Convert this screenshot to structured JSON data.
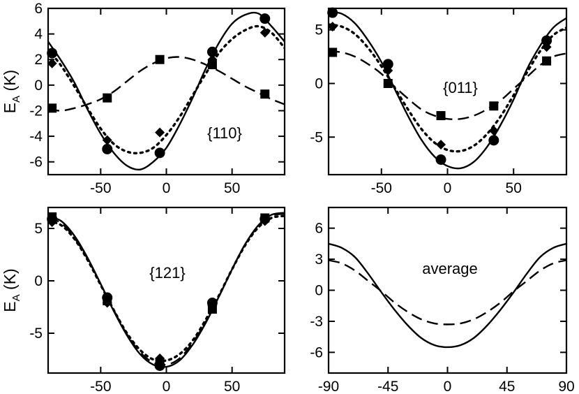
{
  "chart_data": [
    {
      "type": "line",
      "panel_label": "{110}",
      "ylabel_main": "E",
      "ylabel_sub": "A",
      "ylabel_unit": " (K)",
      "xlim": [
        -90,
        90
      ],
      "ylim": [
        -7,
        6
      ],
      "xticks": [
        -50,
        0,
        50
      ],
      "xtick_labels": [
        "-50",
        "0",
        "50"
      ],
      "yticks": [
        -6,
        -4,
        -2,
        0,
        2,
        4,
        6
      ],
      "ytick_labels": [
        "-6",
        "-4",
        "-2",
        "0",
        "2",
        "4",
        "6"
      ],
      "curves": [
        {
          "name": "solid",
          "style": "solid",
          "x": [
            -90,
            -80,
            -70,
            -60,
            -50,
            -40,
            -30,
            -20,
            -10,
            0,
            10,
            20,
            30,
            40,
            50,
            60,
            70,
            80,
            90
          ],
          "y": [
            3.4,
            1.9,
            0.2,
            -1.9,
            -3.8,
            -5.3,
            -6.3,
            -6.6,
            -6.0,
            -4.9,
            -3.1,
            -1.0,
            1.3,
            3.3,
            4.8,
            5.5,
            5.6,
            4.6,
            3.4
          ]
        },
        {
          "name": "dotted",
          "style": "dotted",
          "x": [
            -90,
            -80,
            -70,
            -60,
            -50,
            -40,
            -30,
            -20,
            -10,
            0,
            10,
            20,
            30,
            40,
            50,
            60,
            70,
            80,
            90
          ],
          "y": [
            2.8,
            1.5,
            -0.1,
            -1.8,
            -3.4,
            -4.6,
            -5.2,
            -5.3,
            -4.9,
            -3.9,
            -2.5,
            -0.8,
            0.9,
            2.5,
            3.6,
            4.3,
            4.6,
            4.1,
            2.9
          ]
        },
        {
          "name": "dashed",
          "style": "dashed",
          "x": [
            -90,
            -80,
            -70,
            -60,
            -50,
            -40,
            -30,
            -20,
            -10,
            0,
            10,
            20,
            30,
            40,
            50,
            60,
            70,
            80,
            90
          ],
          "y": [
            -1.9,
            -2.0,
            -1.8,
            -1.5,
            -1.1,
            -0.5,
            0.3,
            1.1,
            1.7,
            2.1,
            2.2,
            2.0,
            1.6,
            1.1,
            0.5,
            -0.1,
            -0.6,
            -1.1,
            -1.5
          ]
        }
      ],
      "markers": [
        {
          "shape": "circle",
          "points": [
            [
              -87,
              2.5
            ],
            [
              -45,
              -5.0
            ],
            [
              -5,
              -5.3
            ],
            [
              35,
              2.6
            ],
            [
              75,
              5.2
            ]
          ]
        },
        {
          "shape": "diamond",
          "points": [
            [
              -87,
              1.7
            ],
            [
              -45,
              -4.3
            ],
            [
              -5,
              -3.7
            ],
            [
              35,
              2.0
            ],
            [
              75,
              4.1
            ]
          ]
        },
        {
          "shape": "square",
          "points": [
            [
              -87,
              -1.8
            ],
            [
              -45,
              -1.0
            ],
            [
              -5,
              2.0
            ],
            [
              35,
              1.6
            ],
            [
              75,
              -0.7
            ]
          ]
        }
      ]
    },
    {
      "type": "line",
      "panel_label": "{011}",
      "ylabel_main": "",
      "ylabel_sub": "",
      "ylabel_unit": "",
      "xlim": [
        -90,
        90
      ],
      "ylim": [
        -8.5,
        7
      ],
      "xticks": [
        -50,
        0,
        50
      ],
      "xtick_labels": [
        "-50",
        "0",
        "50"
      ],
      "yticks": [
        -5,
        0,
        5
      ],
      "ytick_labels": [
        "-5",
        "0",
        "5"
      ],
      "curves": [
        {
          "name": "solid",
          "style": "solid",
          "x": [
            -90,
            -80,
            -70,
            -60,
            -50,
            -40,
            -30,
            -20,
            -10,
            0,
            10,
            20,
            30,
            40,
            50,
            60,
            70,
            80,
            90
          ],
          "y": [
            6.7,
            6.5,
            5.6,
            4.0,
            2.0,
            -0.5,
            -3.0,
            -5.2,
            -6.8,
            -7.7,
            -7.9,
            -7.3,
            -5.9,
            -3.9,
            -1.5,
            1.3,
            3.5,
            5.2,
            6.1
          ]
        },
        {
          "name": "dotted",
          "style": "dotted",
          "x": [
            -90,
            -80,
            -70,
            -60,
            -50,
            -40,
            -30,
            -20,
            -10,
            0,
            10,
            20,
            30,
            40,
            50,
            60,
            70,
            80,
            90
          ],
          "y": [
            5.5,
            5.3,
            4.6,
            3.3,
            1.6,
            -0.4,
            -2.4,
            -4.2,
            -5.5,
            -6.2,
            -6.3,
            -5.8,
            -4.7,
            -3.1,
            -1.1,
            1.0,
            3.0,
            4.5,
            5.2
          ]
        },
        {
          "name": "dashed",
          "style": "dashed",
          "x": [
            -90,
            -80,
            -70,
            -60,
            -50,
            -40,
            -30,
            -20,
            -10,
            0,
            10,
            20,
            30,
            40,
            50,
            60,
            70,
            80,
            90
          ],
          "y": [
            3.0,
            2.9,
            2.5,
            1.8,
            0.9,
            -0.3,
            -1.4,
            -2.4,
            -3.0,
            -3.3,
            -3.3,
            -3.0,
            -2.4,
            -1.6,
            -0.5,
            0.6,
            1.7,
            2.5,
            2.8
          ]
        }
      ],
      "markers": [
        {
          "shape": "circle",
          "points": [
            [
              -87,
              6.6
            ],
            [
              -45,
              1.8
            ],
            [
              -5,
              -7.1
            ],
            [
              35,
              -5.3
            ],
            [
              75,
              4.0
            ]
          ]
        },
        {
          "shape": "diamond",
          "points": [
            [
              -87,
              5.3
            ],
            [
              -45,
              1.2
            ],
            [
              -5,
              -5.7
            ],
            [
              35,
              -4.4
            ],
            [
              75,
              3.4
            ]
          ]
        },
        {
          "shape": "square",
          "points": [
            [
              -87,
              2.9
            ],
            [
              -45,
              0.0
            ],
            [
              -5,
              -3.0
            ],
            [
              35,
              -2.1
            ],
            [
              75,
              2.1
            ]
          ]
        }
      ]
    },
    {
      "type": "line",
      "panel_label": "{121}",
      "ylabel_main": "E",
      "ylabel_sub": "A",
      "ylabel_unit": " (K)",
      "xlim": [
        -90,
        90
      ],
      "ylim": [
        -8.8,
        7
      ],
      "xticks": [
        -50,
        0,
        50
      ],
      "xtick_labels": [
        "-50",
        "0",
        "50"
      ],
      "yticks": [
        -5,
        0,
        5
      ],
      "ytick_labels": [
        "-5",
        "0",
        "5"
      ],
      "curves": [
        {
          "name": "solid",
          "style": "solid",
          "x": [
            -90,
            -80,
            -70,
            -60,
            -50,
            -40,
            -30,
            -20,
            -10,
            0,
            10,
            20,
            30,
            40,
            50,
            60,
            70,
            80,
            90
          ],
          "y": [
            6.2,
            5.7,
            4.3,
            2.2,
            -0.3,
            -2.9,
            -5.2,
            -7.0,
            -8.0,
            -8.2,
            -7.6,
            -6.1,
            -4.0,
            -1.5,
            1.1,
            3.5,
            5.3,
            6.3,
            6.5
          ]
        },
        {
          "name": "dotted",
          "style": "dotted",
          "x": [
            -90,
            -80,
            -70,
            -60,
            -50,
            -40,
            -30,
            -20,
            -10,
            0,
            10,
            20,
            30,
            40,
            50,
            60,
            70,
            80,
            90
          ],
          "y": [
            5.7,
            5.3,
            4.0,
            2.0,
            -0.4,
            -2.8,
            -5.0,
            -6.6,
            -7.5,
            -7.6,
            -7.0,
            -5.7,
            -3.7,
            -1.4,
            1.1,
            3.4,
            5.1,
            6.0,
            6.2
          ]
        },
        {
          "name": "dashed",
          "style": "dashed",
          "x": [
            -90,
            -80,
            -70,
            -60,
            -50,
            -40,
            -30,
            -20,
            -10,
            0,
            10,
            20,
            30,
            40,
            50,
            60,
            70,
            80,
            90
          ],
          "y": [
            6.0,
            5.5,
            4.1,
            2.1,
            -0.3,
            -2.8,
            -5.1,
            -6.8,
            -7.8,
            -8.0,
            -7.4,
            -5.9,
            -3.9,
            -1.5,
            1.1,
            3.5,
            5.2,
            6.2,
            6.4
          ]
        }
      ],
      "markers": [
        {
          "shape": "circle",
          "points": [
            [
              -87,
              5.9
            ],
            [
              -45,
              -1.6
            ],
            [
              -5,
              -8.1
            ],
            [
              35,
              -2.1
            ],
            [
              75,
              5.9
            ]
          ]
        },
        {
          "shape": "diamond",
          "points": [
            [
              -87,
              5.6
            ],
            [
              -45,
              -2.1
            ],
            [
              -5,
              -7.4
            ],
            [
              35,
              -2.4
            ],
            [
              75,
              5.7
            ]
          ]
        },
        {
          "shape": "square",
          "points": [
            [
              -87,
              6.1
            ],
            [
              -45,
              -1.9
            ],
            [
              -5,
              -7.8
            ],
            [
              35,
              -2.7
            ],
            [
              75,
              6.0
            ]
          ]
        }
      ]
    },
    {
      "type": "line",
      "panel_label": "average",
      "ylabel_main": "",
      "ylabel_sub": "",
      "ylabel_unit": "",
      "xlim": [
        -90,
        90
      ],
      "ylim": [
        -8,
        8
      ],
      "xticks": [
        -90,
        -45,
        0,
        45,
        90
      ],
      "xtick_labels": [
        "-90",
        "-45",
        "0",
        "45",
        "90"
      ],
      "yticks": [
        -6,
        -3,
        0,
        3,
        6
      ],
      "ytick_labels": [
        "-6",
        "-3",
        "0",
        "3",
        "6"
      ],
      "curves": [
        {
          "name": "solid",
          "style": "solid",
          "x": [
            -90,
            -80,
            -70,
            -60,
            -50,
            -40,
            -30,
            -20,
            -10,
            0,
            10,
            20,
            30,
            40,
            50,
            60,
            70,
            80,
            90
          ],
          "y": [
            4.5,
            4.1,
            3.2,
            1.6,
            -0.2,
            -1.9,
            -3.4,
            -4.6,
            -5.3,
            -5.5,
            -5.3,
            -4.6,
            -3.4,
            -1.9,
            -0.2,
            1.6,
            3.2,
            4.1,
            4.5
          ]
        },
        {
          "name": "dashed",
          "style": "dashed",
          "x": [
            -90,
            -80,
            -70,
            -60,
            -50,
            -40,
            -30,
            -20,
            -10,
            0,
            10,
            20,
            30,
            40,
            50,
            60,
            70,
            80,
            90
          ],
          "y": [
            2.9,
            2.6,
            1.9,
            0.9,
            -0.1,
            -1.2,
            -2.1,
            -2.8,
            -3.2,
            -3.3,
            -3.2,
            -2.8,
            -2.1,
            -1.2,
            -0.1,
            0.9,
            1.9,
            2.6,
            2.9
          ]
        }
      ],
      "markers": []
    }
  ]
}
